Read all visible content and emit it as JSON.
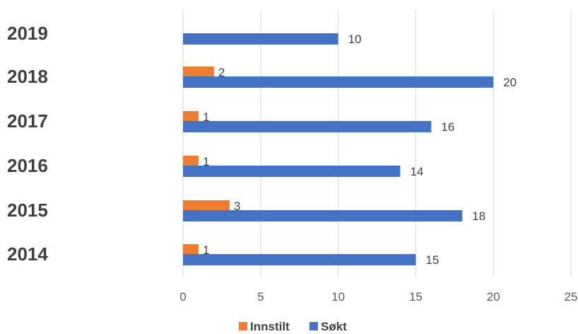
{
  "chart_data": {
    "type": "bar",
    "orientation": "horizontal",
    "title": "",
    "xlabel": "",
    "ylabel": "",
    "categories": [
      "2019",
      "2018",
      "2017",
      "2016",
      "2015",
      "2014"
    ],
    "series": [
      {
        "name": "Innstilt",
        "color": "#ED7D31",
        "values": [
          null,
          2,
          1,
          1,
          3,
          1
        ]
      },
      {
        "name": "Søkt",
        "color": "#4472C4",
        "values": [
          10,
          20,
          16,
          14,
          18,
          15
        ]
      }
    ],
    "xlim": [
      0,
      25
    ],
    "xticks": [
      "0",
      "5",
      "10",
      "15",
      "20",
      "25"
    ],
    "grid": "vertical",
    "legend": "bottom",
    "data_labels": true
  }
}
